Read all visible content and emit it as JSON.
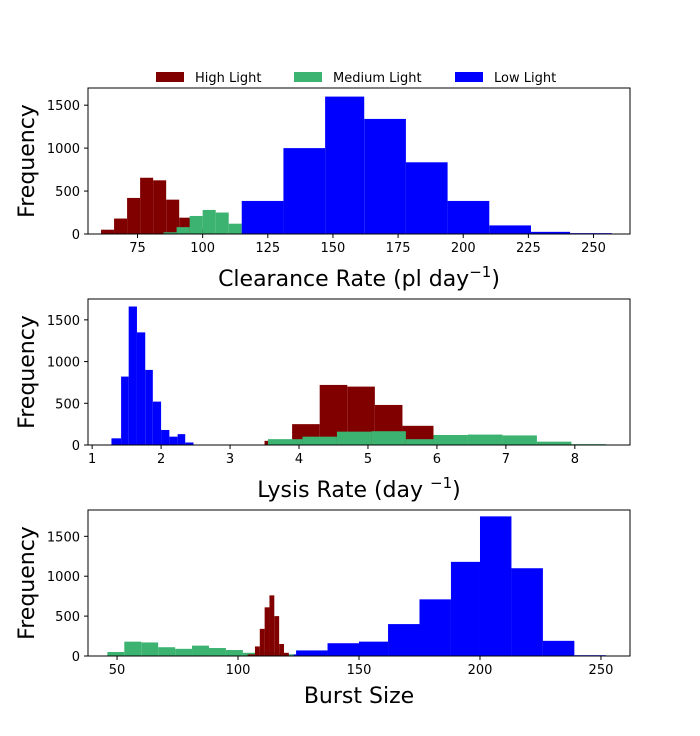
{
  "legend": [
    {
      "label": "High Light",
      "color": "#800000"
    },
    {
      "label": "Medium Light",
      "color": "#3cb371"
    },
    {
      "label": "Low Light",
      "color": "#0000ff"
    }
  ],
  "chart_data": [
    {
      "type": "bar",
      "title": "",
      "xlabel": "Clearance Rate (pl day",
      "xlabel_sup": "−1",
      "xlabel_suffix": ")",
      "ylabel": "Frequency",
      "xlim": [
        56,
        264
      ],
      "ylim": [
        0,
        1700
      ],
      "xticks": [
        75,
        100,
        125,
        150,
        175,
        200,
        225,
        250
      ],
      "yticks": [
        0,
        500,
        1000,
        1500
      ],
      "series": [
        {
          "name": "High Light",
          "color": "#800000",
          "bins": [
            [
              61,
              66,
              50
            ],
            [
              66,
              71,
              180
            ],
            [
              71,
              76,
              420
            ],
            [
              76,
              81,
              655
            ],
            [
              81,
              86,
              625
            ],
            [
              86,
              91,
              400
            ],
            [
              91,
              96,
              190
            ],
            [
              96,
              101,
              60
            ],
            [
              101,
              106,
              10
            ]
          ]
        },
        {
          "name": "Medium Light",
          "color": "#3cb371",
          "bins": [
            [
              85,
              90,
              20
            ],
            [
              90,
              95,
              80
            ],
            [
              95,
              100,
              210
            ],
            [
              100,
              105,
              280
            ],
            [
              105,
              110,
              250
            ],
            [
              110,
              115,
              120
            ],
            [
              115,
              120,
              45
            ],
            [
              120,
              125,
              20
            ],
            [
              125,
              130,
              15
            ],
            [
              130,
              135,
              5
            ]
          ]
        },
        {
          "name": "Low Light",
          "color": "#0000ff",
          "bins": [
            [
              115,
              131,
              385
            ],
            [
              131,
              147,
              1000
            ],
            [
              147,
              162,
              1600
            ],
            [
              162,
              178,
              1340
            ],
            [
              178,
              194,
              835
            ],
            [
              194,
              210,
              385
            ],
            [
              210,
              226,
              100
            ],
            [
              226,
              241,
              25
            ],
            [
              241,
              257,
              10
            ]
          ]
        }
      ]
    },
    {
      "type": "bar",
      "title": "",
      "xlabel": "Lysis Rate (day ",
      "xlabel_sup": "−1",
      "xlabel_suffix": ")",
      "ylabel": "Frequency",
      "xlim": [
        0.94,
        8.8
      ],
      "ylim": [
        0,
        1750
      ],
      "xticks": [
        1,
        2,
        3,
        4,
        5,
        6,
        7,
        8
      ],
      "yticks": [
        0,
        500,
        1000,
        1500
      ],
      "series": [
        {
          "name": "High Light",
          "color": "#800000",
          "bins": [
            [
              3.5,
              3.9,
              50
            ],
            [
              3.9,
              4.3,
              250
            ],
            [
              4.3,
              4.7,
              720
            ],
            [
              4.7,
              5.1,
              700
            ],
            [
              5.1,
              5.5,
              480
            ],
            [
              5.5,
              5.95,
              230
            ],
            [
              5.95,
              6.4,
              10
            ]
          ]
        },
        {
          "name": "Medium Light",
          "color": "#3cb371",
          "bins": [
            [
              3.55,
              4.05,
              70
            ],
            [
              4.05,
              4.55,
              100
            ],
            [
              4.55,
              5.05,
              160
            ],
            [
              5.05,
              5.55,
              165
            ],
            [
              5.55,
              5.95,
              70
            ],
            [
              5.95,
              6.45,
              120
            ],
            [
              6.45,
              6.95,
              125
            ],
            [
              6.95,
              7.45,
              115
            ],
            [
              7.45,
              7.95,
              40
            ],
            [
              7.95,
              8.45,
              10
            ]
          ]
        },
        {
          "name": "Low Light",
          "color": "#0000ff",
          "bins": [
            [
              1.28,
              1.42,
              80
            ],
            [
              1.42,
              1.53,
              820
            ],
            [
              1.53,
              1.65,
              1660
            ],
            [
              1.65,
              1.77,
              1350
            ],
            [
              1.77,
              1.88,
              900
            ],
            [
              1.88,
              2.0,
              520
            ],
            [
              2.0,
              2.12,
              180
            ],
            [
              2.12,
              2.24,
              100
            ],
            [
              2.24,
              2.35,
              130
            ],
            [
              2.35,
              2.47,
              30
            ]
          ]
        }
      ]
    },
    {
      "type": "bar",
      "title": "",
      "xlabel": "Burst Size",
      "ylabel": "Frequency",
      "xlim": [
        38,
        262
      ],
      "ylim": [
        0,
        1830
      ],
      "xticks": [
        50,
        100,
        150,
        200,
        250
      ],
      "yticks": [
        0,
        500,
        1000,
        1500
      ],
      "series": [
        {
          "name": "Low Light",
          "color": "#0000ff",
          "bins": [
            [
              111,
              124,
              20
            ],
            [
              124,
              137,
              70
            ],
            [
              137,
              150,
              160
            ],
            [
              150,
              162,
              180
            ],
            [
              162,
              175,
              400
            ],
            [
              175,
              188,
              710
            ],
            [
              188,
              200,
              1180
            ],
            [
              200,
              213,
              1750
            ],
            [
              213,
              226,
              1100
            ],
            [
              226,
              239,
              190
            ],
            [
              239,
              252,
              10
            ]
          ]
        },
        {
          "name": "Medium Light",
          "color": "#3cb371",
          "bins": [
            [
              46,
              53,
              50
            ],
            [
              53,
              60,
              180
            ],
            [
              60,
              67,
              170
            ],
            [
              67,
              74,
              110
            ],
            [
              74,
              81,
              90
            ],
            [
              81,
              88,
              130
            ],
            [
              88,
              95,
              100
            ],
            [
              95,
              102,
              75
            ],
            [
              102,
              109,
              40
            ],
            [
              109,
              116,
              50
            ],
            [
              116,
              123,
              20
            ]
          ]
        },
        {
          "name": "High Light",
          "color": "#800000",
          "bins": [
            [
              104,
              107,
              20
            ],
            [
              107,
              109,
              120
            ],
            [
              109,
              111,
              340
            ],
            [
              111,
              113,
              610
            ],
            [
              113,
              115,
              760
            ],
            [
              115,
              117,
              500
            ],
            [
              117,
              119,
              150
            ],
            [
              119,
              121,
              40
            ]
          ]
        }
      ]
    }
  ]
}
